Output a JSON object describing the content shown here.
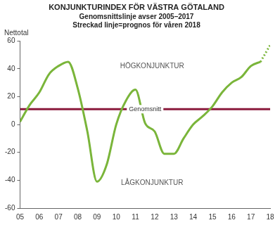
{
  "chart_data": {
    "type": "line",
    "title": "KONJUNKTURINDEX FÖR VÄSTRA GÖTALAND",
    "subtitle": [
      "Genomsnittslinje avser 2005–2017",
      "Streckad linje=prognos för våren 2018"
    ],
    "y_label": "Nettotal",
    "categories": [
      "05",
      null,
      "06",
      null,
      "07",
      null,
      "08",
      null,
      "09",
      null,
      "10",
      null,
      "11",
      null,
      "12",
      null,
      "13",
      null,
      "14",
      null,
      "15",
      null,
      "16",
      null,
      "17",
      null,
      "18"
    ],
    "series": [
      {
        "color": "#7ab53a",
        "line_style": "solid",
        "values": [
          2,
          14,
          23,
          36,
          42,
          45,
          26,
          -5,
          -41,
          -29,
          0,
          17,
          25,
          1,
          -5,
          -21,
          -21,
          -10,
          0,
          6,
          13,
          23,
          30,
          34,
          42,
          45,
          null
        ]
      },
      {
        "color": "#7ab53a",
        "line_style": "dotted",
        "values": [
          null,
          null,
          null,
          null,
          null,
          null,
          null,
          null,
          null,
          null,
          null,
          null,
          null,
          null,
          null,
          null,
          null,
          null,
          null,
          null,
          null,
          null,
          null,
          null,
          null,
          45,
          57
        ]
      }
    ],
    "average": {
      "value": 11,
      "label": "Genomsnitt",
      "color": "#8b1a3c"
    },
    "annotations": [
      "HÖGKONJUNKTUR",
      "LÅGKONJUNKTUR"
    ],
    "ylim": [
      -60,
      60
    ],
    "yticks": [
      -60,
      -40,
      -20,
      0,
      20,
      40,
      60
    ],
    "grid": false
  }
}
